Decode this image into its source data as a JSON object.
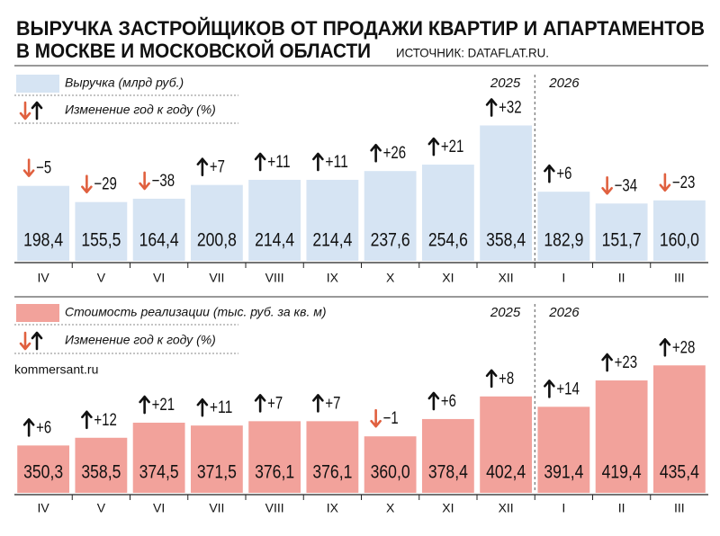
{
  "title": [
    "ВЫРУЧКА ЗАСТРОЙЩИКОВ ОТ ПРОДАЖИ КВАРТИР И АПАРТАМЕНТОВ",
    "В МОСКВЕ И МОСКОВСКОЙ ОБЛАСТИ"
  ],
  "source": "ИСТОЧНИК: DATAFLAT.RU.",
  "watermark": "kommersant.ru",
  "chart_data": [
    {
      "type": "bar",
      "categories": [
        "IV",
        "V",
        "VI",
        "VII",
        "VIII",
        "IX",
        "X",
        "XI",
        "XII",
        "I",
        "II",
        "III"
      ],
      "years": [
        "2025",
        "2026"
      ],
      "ylim": [
        0,
        400
      ],
      "series": [
        {
          "name": "Выручка (млрд руб.)",
          "color": "#d6e4f3",
          "values": [
            198.4,
            155.5,
            164.4,
            200.8,
            214.4,
            214.4,
            237.6,
            254.6,
            358.4,
            182.9,
            151.7,
            160.0
          ],
          "value_labels": [
            "198,4",
            "155,5",
            "164,4",
            "200,8",
            "214,4",
            "214,4",
            "237,6",
            "254,6",
            "358,4",
            "182,9",
            "151,7",
            "160,0"
          ]
        },
        {
          "name": "Изменение год к году (%)",
          "up_color": "#111111",
          "down_color": "#e0603f",
          "values": [
            -5,
            -29,
            -38,
            7,
            11,
            11,
            26,
            21,
            32,
            6,
            -34,
            -23
          ],
          "value_labels": [
            "−5",
            "−29",
            "−38",
            "+7",
            "+11",
            "+11",
            "+26",
            "+21",
            "+32",
            "+6",
            "−34",
            "−23"
          ]
        }
      ]
    },
    {
      "type": "bar",
      "categories": [
        "IV",
        "V",
        "VI",
        "VII",
        "VIII",
        "IX",
        "X",
        "XI",
        "XII",
        "I",
        "II",
        "III"
      ],
      "years": [
        "2025",
        "2026"
      ],
      "ylim": [
        300,
        450
      ],
      "series": [
        {
          "name": "Стоимость реализации (тыс. руб. за кв. м)",
          "color": "#f2a29b",
          "values": [
            350.3,
            358.5,
            374.5,
            371.5,
            376.1,
            376.1,
            360.0,
            378.4,
            402.4,
            391.4,
            419.4,
            435.4
          ],
          "value_labels": [
            "350,3",
            "358,5",
            "374,5",
            "371,5",
            "376,1",
            "376,1",
            "360,0",
            "378,4",
            "402,4",
            "391,4",
            "419,4",
            "435,4"
          ]
        },
        {
          "name": "Изменение год к году (%)",
          "up_color": "#111111",
          "down_color": "#e0603f",
          "values": [
            6,
            12,
            21,
            11,
            7,
            7,
            -1,
            6,
            8,
            14,
            23,
            28
          ],
          "value_labels": [
            "+6",
            "+12",
            "+21",
            "+11",
            "+7",
            "+7",
            "−1",
            "+6",
            "+8",
            "+14",
            "+23",
            "+28"
          ]
        }
      ]
    }
  ]
}
